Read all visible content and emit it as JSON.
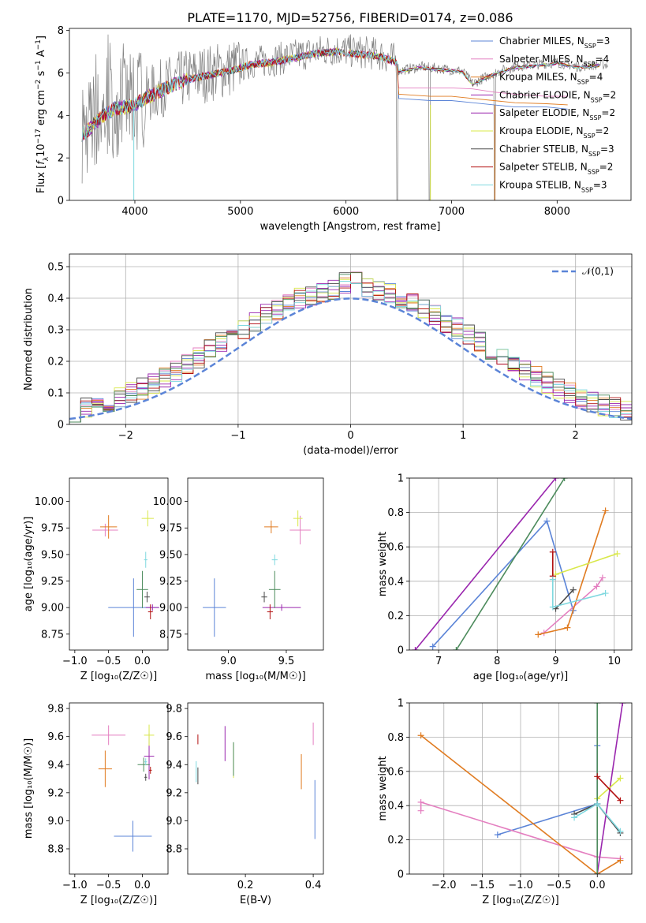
{
  "colors": {
    "Chabrier MILES": "#5b84d7",
    "Salpeter MILES": "#e47fc0",
    "Kroupa MILES": "#e07b20",
    "Chabrier ELODIE": "#9a26ae",
    "Salpeter ELODIE": "#9a26ae",
    "Kroupa ELODIE": "#d9e84a",
    "Chabrier STELIB": "#4a4a4a",
    "Salpeter STELIB": "#b21010",
    "Kroupa STELIB": "#7fd8df",
    "green": "#4c8b5c",
    "normal": "#5b84d7"
  },
  "chart_data": [
    {
      "id": "spectrum",
      "type": "line",
      "title": "PLATE=1170, MJD=52756, FIBERID=0174, z=0.086",
      "xlabel": "wavelength [Angstrom, rest frame]",
      "ylabel_parts": [
        "Flux [",
        "f",
        "λ",
        "10",
        "−17",
        " erg cm",
        "−2",
        " s",
        "−1",
        " A",
        "−1",
        "]"
      ],
      "xlim": [
        3380,
        8700
      ],
      "ylim": [
        0,
        8.1
      ],
      "xticks": [
        4000,
        5000,
        6000,
        7000,
        8000
      ],
      "yticks": [
        0,
        2,
        4,
        6,
        8
      ],
      "legend_position": "upper right",
      "legend": [
        {
          "name": "Chabrier MILES",
          "sub": "N",
          "subsub": "SSP",
          "val": "=3"
        },
        {
          "name": "Salpeter MILES",
          "sub": "N",
          "subsub": "SSP",
          "val": "=4"
        },
        {
          "name": "Kroupa MILES",
          "sub": "N",
          "subsub": "SSP",
          "val": "=4"
        },
        {
          "name": "Chabrier ELODIE",
          "sub": "N",
          "subsub": "SSP",
          "val": "=2"
        },
        {
          "name": "Salpeter ELODIE",
          "sub": "N",
          "subsub": "SSP",
          "val": "=2"
        },
        {
          "name": "Kroupa ELODIE",
          "sub": "N",
          "subsub": "SSP",
          "val": "=2"
        },
        {
          "name": "Chabrier STELIB",
          "sub": "N",
          "subsub": "SSP",
          "val": "=3"
        },
        {
          "name": "Salpeter STELIB",
          "sub": "N",
          "subsub": "SSP",
          "val": "=2"
        },
        {
          "name": "Kroupa STELIB",
          "sub": "N",
          "subsub": "SSP",
          "val": "=3"
        }
      ],
      "data_continuum": [
        [
          3500,
          3.2
        ],
        [
          3600,
          3.7
        ],
        [
          3700,
          4.1
        ],
        [
          3800,
          4.4
        ],
        [
          3900,
          4.5
        ],
        [
          4000,
          4.6
        ],
        [
          4100,
          4.9
        ],
        [
          4300,
          5.4
        ],
        [
          4500,
          5.8
        ],
        [
          4700,
          6.0
        ],
        [
          4900,
          6.2
        ],
        [
          5100,
          6.5
        ],
        [
          5300,
          6.6
        ],
        [
          5500,
          6.8
        ],
        [
          5700,
          7.0
        ],
        [
          5900,
          7.1
        ],
        [
          6100,
          7.0
        ],
        [
          6300,
          6.9
        ],
        [
          6480,
          6.6
        ],
        [
          6500,
          6.1
        ],
        [
          6700,
          6.3
        ],
        [
          6900,
          6.2
        ],
        [
          7100,
          6.1
        ],
        [
          7200,
          5.5
        ],
        [
          7400,
          6.0
        ],
        [
          7600,
          6.3
        ],
        [
          7800,
          6.4
        ],
        [
          8000,
          6.5
        ],
        [
          8200,
          6.3
        ],
        [
          8400,
          6.4
        ]
      ],
      "model_continuum": [
        [
          3500,
          3.1
        ],
        [
          3600,
          3.5
        ],
        [
          3700,
          4.0
        ],
        [
          3800,
          4.3
        ],
        [
          3900,
          4.4
        ],
        [
          4000,
          4.5
        ],
        [
          4100,
          4.8
        ],
        [
          4300,
          5.3
        ],
        [
          4500,
          5.7
        ],
        [
          4700,
          5.9
        ],
        [
          4900,
          6.1
        ],
        [
          5100,
          6.4
        ],
        [
          5300,
          6.5
        ],
        [
          5500,
          6.7
        ],
        [
          5700,
          6.9
        ],
        [
          5900,
          7.0
        ],
        [
          6100,
          6.9
        ],
        [
          6300,
          6.8
        ],
        [
          6480,
          6.5
        ]
      ],
      "model_tails": {
        "Chabrier MILES": [
          [
            6500,
            4.8
          ],
          [
            6800,
            4.7
          ],
          [
            7000,
            4.7
          ],
          [
            7200,
            4.6
          ],
          [
            7400,
            4.5
          ],
          [
            7600,
            4.4
          ],
          [
            7900,
            4.4
          ],
          [
            8100,
            4.3
          ]
        ],
        "Salpeter MILES": [
          [
            6500,
            5.3
          ],
          [
            6800,
            5.3
          ],
          [
            7000,
            5.3
          ],
          [
            7200,
            5.25
          ],
          [
            7400,
            5.1
          ],
          [
            7600,
            5.0
          ],
          [
            7900,
            4.9
          ],
          [
            8100,
            4.9
          ]
        ],
        "Kroupa MILES": [
          [
            6500,
            5.0
          ],
          [
            6800,
            4.9
          ],
          [
            7000,
            4.9
          ],
          [
            7200,
            4.8
          ],
          [
            7400,
            4.7
          ],
          [
            7600,
            4.6
          ],
          [
            7900,
            4.55
          ],
          [
            8100,
            4.5
          ]
        ]
      }
    },
    {
      "id": "residuals",
      "type": "line",
      "xlabel": "(data-model)/error",
      "ylabel": "Normed distribution",
      "xlim": [
        -2.5,
        2.5
      ],
      "ylim": [
        0,
        0.54
      ],
      "xticks": [
        -2,
        -1,
        0,
        1,
        2
      ],
      "yticks": [
        0.0,
        0.1,
        0.2,
        0.3,
        0.4,
        0.5
      ],
      "bin_width": 0.1,
      "bin_start": -2.5,
      "legend": [
        "𝒩(0,1)"
      ],
      "legend_position": "upper right",
      "mean": 0,
      "std": 1
    },
    {
      "id": "age_vs_Z",
      "type": "scatter",
      "xlabel": "Z [log₁₀(Z/Z☉)]",
      "ylabel": "age  [log₁₀(age/yr)]",
      "xlim": [
        -1.08,
        0.38
      ],
      "ylim": [
        8.6,
        10.22
      ],
      "xticks": [
        -1.0,
        -0.5,
        0.0
      ],
      "yticks": [
        8.75,
        9.0,
        9.25,
        9.5,
        9.75,
        10.0
      ],
      "xtick_labels": [
        "−1.0",
        "−0.5",
        "0.0"
      ],
      "ytick_labels": [
        "8.75",
        "9.00",
        "9.25",
        "9.50",
        "9.75",
        "10.00"
      ],
      "points": [
        {
          "c": "Chabrier MILES",
          "x": -0.13,
          "y": 9.0,
          "ex": 0.75,
          "ey": 0.55
        },
        {
          "c": "Salpeter MILES",
          "x": -0.55,
          "y": 9.73,
          "ex": 0.38,
          "ey": 0.12
        },
        {
          "c": "Kroupa MILES",
          "x": -0.5,
          "y": 9.76,
          "ex": 0.25,
          "ey": 0.22
        },
        {
          "c": "Chabrier ELODIE",
          "x": 0.15,
          "y": 9.0,
          "ex": 0.2,
          "ey": 0.06
        },
        {
          "c": "Kroupa ELODIE",
          "x": 0.08,
          "y": 9.84,
          "ex": 0.18,
          "ey": 0.15
        },
        {
          "c": "green",
          "x": 0.0,
          "y": 9.17,
          "ex": 0.17,
          "ey": 0.35
        },
        {
          "c": "Chabrier STELIB",
          "x": 0.07,
          "y": 9.1,
          "ex": 0.08,
          "ey": 0.1
        },
        {
          "c": "Salpeter STELIB",
          "x": 0.12,
          "y": 8.96,
          "ex": 0.07,
          "ey": 0.14
        },
        {
          "c": "Kroupa STELIB",
          "x": 0.05,
          "y": 9.45,
          "ex": 0.05,
          "ey": 0.15
        }
      ]
    },
    {
      "id": "age_vs_mass",
      "type": "scatter",
      "xlabel": "mass [log₁₀(M/M☉)]",
      "xlim": [
        8.65,
        9.82
      ],
      "ylim": [
        8.6,
        10.22
      ],
      "xticks": [
        9.0,
        9.5
      ],
      "yticks": [
        8.75,
        9.0,
        9.25,
        9.5,
        9.75,
        10.0
      ],
      "xtick_labels": [
        "9.0",
        "9.5"
      ],
      "ytick_labels": [
        "8.75",
        "9.00",
        "9.25",
        "9.50",
        "9.75",
        "10.00"
      ],
      "points": [
        {
          "c": "Chabrier MILES",
          "x": 8.88,
          "y": 9.0,
          "ex": 0.2,
          "ey": 0.55
        },
        {
          "c": "Salpeter MILES",
          "x": 9.62,
          "y": 9.73,
          "ex": 0.18,
          "ey": 0.27
        },
        {
          "c": "Kroupa MILES",
          "x": 9.37,
          "y": 9.76,
          "ex": 0.12,
          "ey": 0.12
        },
        {
          "c": "Chabrier ELODIE",
          "x": 9.46,
          "y": 9.0,
          "ex": 0.33,
          "ey": 0.06
        },
        {
          "c": "Kroupa ELODIE",
          "x": 9.6,
          "y": 9.84,
          "ex": 0.08,
          "ey": 0.15
        },
        {
          "c": "green",
          "x": 9.4,
          "y": 9.17,
          "ex": 0.1,
          "ey": 0.35
        },
        {
          "c": "Chabrier STELIB",
          "x": 9.31,
          "y": 9.1,
          "ex": 0.05,
          "ey": 0.1
        },
        {
          "c": "Salpeter STELIB",
          "x": 9.36,
          "y": 8.96,
          "ex": 0.05,
          "ey": 0.14
        },
        {
          "c": "Kroupa STELIB",
          "x": 9.4,
          "y": 9.45,
          "ex": 0.05,
          "ey": 0.1
        }
      ]
    },
    {
      "id": "mw_vs_age",
      "type": "line",
      "xlabel": "age  [log₁₀(age/yr)]",
      "ylabel": "mass weight",
      "xlim": [
        6.5,
        10.3
      ],
      "ylim": [
        0,
        1
      ],
      "xticks": [
        7,
        8,
        9,
        10
      ],
      "yticks": [
        0.0,
        0.2,
        0.4,
        0.6,
        0.8,
        1.0
      ],
      "lines": [
        {
          "c": "Chabrier MILES",
          "pts": [
            [
              6.9,
              0.02
            ],
            [
              8.85,
              0.75
            ],
            [
              9.3,
              0.23
            ]
          ]
        },
        {
          "c": "Salpeter MILES",
          "pts": [
            [
              8.8,
              0.1
            ],
            [
              9.7,
              0.37
            ],
            [
              9.8,
              0.42
            ]
          ]
        },
        {
          "c": "Kroupa MILES",
          "pts": [
            [
              8.7,
              0.09
            ],
            [
              9.2,
              0.13
            ],
            [
              9.85,
              0.81
            ]
          ]
        },
        {
          "c": "Chabrier ELODIE",
          "pts": [
            [
              6.6,
              0.0
            ],
            [
              9.0,
              1.0
            ]
          ]
        },
        {
          "c": "Kroupa ELODIE",
          "pts": [
            [
              9.0,
              0.44
            ],
            [
              10.05,
              0.56
            ]
          ]
        },
        {
          "c": "green",
          "pts": [
            [
              7.3,
              0.0
            ],
            [
              9.15,
              1.0
            ]
          ]
        },
        {
          "c": "Chabrier STELIB",
          "pts": [
            [
              9.0,
              0.24
            ],
            [
              9.3,
              0.35
            ]
          ]
        },
        {
          "c": "Salpeter STELIB",
          "pts": [
            [
              8.95,
              0.57
            ],
            [
              8.95,
              0.43
            ]
          ]
        },
        {
          "c": "Kroupa STELIB",
          "pts": [
            [
              8.95,
              0.41
            ],
            [
              8.95,
              0.25
            ],
            [
              9.85,
              0.33
            ]
          ]
        }
      ]
    },
    {
      "id": "mass_vs_Z",
      "type": "scatter",
      "xlabel": "Z [log₁₀(Z/Z☉)]",
      "ylabel": "mass [log₁₀(M/M☉)]",
      "xlim": [
        -1.08,
        0.38
      ],
      "ylim": [
        8.62,
        9.84
      ],
      "xticks": [
        -1.0,
        -0.5,
        0.0
      ],
      "yticks": [
        8.8,
        9.0,
        9.2,
        9.4,
        9.6,
        9.8
      ],
      "xtick_labels": [
        "−1.0",
        "−0.5",
        "0.0"
      ],
      "ytick_labels": [
        "8.8",
        "9.0",
        "9.2",
        "9.4",
        "9.6",
        "9.8"
      ],
      "points": [
        {
          "c": "Chabrier MILES",
          "x": -0.14,
          "y": 8.89,
          "ex": 0.56,
          "ey": 0.22
        },
        {
          "c": "Salpeter MILES",
          "x": -0.5,
          "y": 9.61,
          "ex": 0.5,
          "ey": 0.14
        },
        {
          "c": "Kroupa MILES",
          "x": -0.55,
          "y": 9.37,
          "ex": 0.2,
          "ey": 0.26
        },
        {
          "c": "Chabrier ELODIE",
          "x": 0.1,
          "y": 9.46,
          "ex": 0.15,
          "ey": 0.33
        },
        {
          "c": "Kroupa ELODIE",
          "x": 0.1,
          "y": 9.61,
          "ex": 0.15,
          "ey": 0.15
        },
        {
          "c": "green",
          "x": 0.02,
          "y": 9.4,
          "ex": 0.18,
          "ey": 0.1
        },
        {
          "c": "Chabrier STELIB",
          "x": 0.05,
          "y": 9.31,
          "ex": 0.04,
          "ey": 0.05
        },
        {
          "c": "Salpeter STELIB",
          "x": 0.12,
          "y": 9.36,
          "ex": 0.04,
          "ey": 0.05
        },
        {
          "c": "Kroupa STELIB",
          "x": 0.05,
          "y": 9.42,
          "ex": 0.04,
          "ey": 0.05
        }
      ]
    },
    {
      "id": "mass_vs_EBV",
      "type": "scatter",
      "xlabel": "E(B-V)",
      "xlim": [
        0.03,
        0.43
      ],
      "ylim": [
        8.62,
        9.84
      ],
      "xticks": [
        0.2,
        0.4
      ],
      "yticks": [
        8.8,
        9.0,
        9.2,
        9.4,
        9.6,
        9.8
      ],
      "xtick_labels": [
        "0.2",
        "0.4"
      ],
      "ytick_labels": [
        "8.8",
        "9.0",
        "9.2",
        "9.4",
        "9.6",
        "9.8"
      ],
      "points": [
        {
          "c": "Chabrier MILES",
          "x": 0.405,
          "y": 9.08,
          "ey": 0.42
        },
        {
          "c": "Salpeter MILES",
          "x": 0.4,
          "y": 9.62,
          "ey": 0.16
        },
        {
          "c": "Kroupa MILES",
          "x": 0.365,
          "y": 9.35,
          "ey": 0.25
        },
        {
          "c": "Chabrier ELODIE",
          "x": 0.14,
          "y": 9.55,
          "ey": 0.25
        },
        {
          "c": "Kroupa ELODIE",
          "x": 0.165,
          "y": 9.43,
          "ey": 0.25
        },
        {
          "c": "green",
          "x": 0.165,
          "y": 9.44,
          "ey": 0.24
        },
        {
          "c": "Chabrier STELIB",
          "x": 0.06,
          "y": 9.32,
          "ey": 0.12
        },
        {
          "c": "Salpeter STELIB",
          "x": 0.06,
          "y": 9.58,
          "ey": 0.07
        },
        {
          "c": "Kroupa STELIB",
          "x": 0.055,
          "y": 9.35,
          "ey": 0.15
        }
      ]
    },
    {
      "id": "mw_vs_Z",
      "type": "line",
      "xlabel": "Z [log₁₀(Z/Z☉)]",
      "ylabel": "mass weight",
      "xlim": [
        -2.45,
        0.45
      ],
      "ylim": [
        0,
        1
      ],
      "xticks": [
        -2.0,
        -1.5,
        -1.0,
        -0.5,
        0.0
      ],
      "yticks": [
        0.0,
        0.2,
        0.4,
        0.6,
        0.8,
        1.0
      ],
      "xtick_labels": [
        "−2.0",
        "−1.5",
        "−1.0",
        "−0.5",
        "0.0"
      ],
      "lines": [
        {
          "c": "Chabrier MILES",
          "pts": [
            [
              -1.3,
              0.23
            ],
            [
              0.0,
              0.41
            ],
            [
              0.0,
              0.75
            ]
          ]
        },
        {
          "c": "Salpeter MILES",
          "pts": [
            [
              -2.3,
              0.37
            ],
            [
              -2.3,
              0.42
            ],
            [
              0.0,
              0.1
            ],
            [
              0.3,
              0.09
            ]
          ]
        },
        {
          "c": "Kroupa MILES",
          "pts": [
            [
              -2.3,
              0.81
            ],
            [
              0.0,
              0.0
            ],
            [
              0.3,
              0.08
            ]
          ]
        },
        {
          "c": "Chabrier ELODIE",
          "pts": [
            [
              0.0,
              0.0
            ],
            [
              0.33,
              1.0
            ]
          ]
        },
        {
          "c": "Kroupa ELODIE",
          "pts": [
            [
              0.0,
              0.44
            ],
            [
              0.3,
              0.56
            ]
          ]
        },
        {
          "c": "green",
          "pts": [
            [
              0.0,
              0.0
            ],
            [
              0.0,
              1.0
            ]
          ]
        },
        {
          "c": "Chabrier STELIB",
          "pts": [
            [
              -0.3,
              0.35
            ],
            [
              0.0,
              0.41
            ],
            [
              0.3,
              0.24
            ]
          ]
        },
        {
          "c": "Salpeter STELIB",
          "pts": [
            [
              0.0,
              0.57
            ],
            [
              0.3,
              0.43
            ]
          ]
        },
        {
          "c": "Kroupa STELIB",
          "pts": [
            [
              -0.3,
              0.33
            ],
            [
              0.0,
              0.41
            ],
            [
              0.3,
              0.25
            ]
          ]
        }
      ]
    }
  ]
}
